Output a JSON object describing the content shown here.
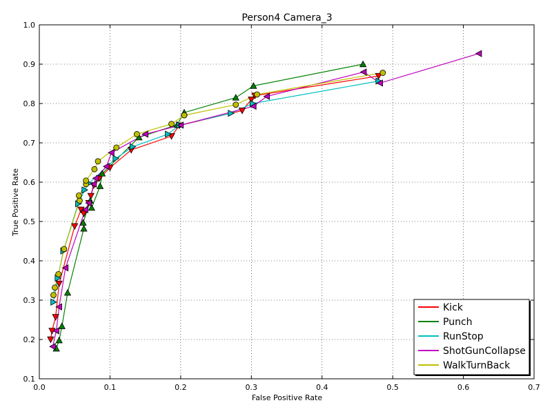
{
  "chart_data": {
    "type": "line",
    "title": "Person4 Camera_3",
    "xlabel": "False Positive Rate",
    "ylabel": "True Positive Rate",
    "xlim": [
      0.0,
      0.7
    ],
    "ylim": [
      0.1,
      1.0
    ],
    "xticks": [
      0.0,
      0.1,
      0.2,
      0.3,
      0.4,
      0.5,
      0.6,
      0.7
    ],
    "yticks": [
      0.1,
      0.2,
      0.3,
      0.4,
      0.5,
      0.6,
      0.7,
      0.8,
      0.9,
      1.0
    ],
    "xtick_labels": [
      "0.0",
      "0.1",
      "0.2",
      "0.3",
      "0.4",
      "0.5",
      "0.6",
      "0.7"
    ],
    "ytick_labels": [
      "0.1",
      "0.2",
      "0.3",
      "0.4",
      "0.5",
      "0.6",
      "0.7",
      "0.8",
      "0.9",
      "1.0"
    ],
    "grid": true,
    "legend_position": "bottom-right",
    "series": [
      {
        "name": "Kick",
        "color": "#ff0000",
        "marker": "triangle-down",
        "points": [
          [
            0.016,
            0.2
          ],
          [
            0.018,
            0.222
          ],
          [
            0.023,
            0.257
          ],
          [
            0.028,
            0.342
          ],
          [
            0.05,
            0.488
          ],
          [
            0.059,
            0.53
          ],
          [
            0.063,
            0.52
          ],
          [
            0.07,
            0.547
          ],
          [
            0.073,
            0.565
          ],
          [
            0.077,
            0.592
          ],
          [
            0.085,
            0.61
          ],
          [
            0.1,
            0.637
          ],
          [
            0.13,
            0.682
          ],
          [
            0.187,
            0.717
          ],
          [
            0.198,
            0.744
          ],
          [
            0.287,
            0.782
          ],
          [
            0.3,
            0.81
          ],
          [
            0.305,
            0.82
          ],
          [
            0.48,
            0.87
          ]
        ]
      },
      {
        "name": "Punch",
        "color": "#008000",
        "marker": "triangle-up",
        "points": [
          [
            0.024,
            0.177
          ],
          [
            0.028,
            0.198
          ],
          [
            0.032,
            0.234
          ],
          [
            0.04,
            0.319
          ],
          [
            0.063,
            0.482
          ],
          [
            0.062,
            0.497
          ],
          [
            0.072,
            0.553
          ],
          [
            0.074,
            0.535
          ],
          [
            0.086,
            0.59
          ],
          [
            0.089,
            0.622
          ],
          [
            0.141,
            0.714
          ],
          [
            0.195,
            0.746
          ],
          [
            0.205,
            0.777
          ],
          [
            0.278,
            0.815
          ],
          [
            0.303,
            0.845
          ],
          [
            0.458,
            0.9
          ]
        ]
      },
      {
        "name": "RunStop",
        "color": "#00bfbf",
        "marker": "triangle-right",
        "points": [
          [
            0.02,
            0.295
          ],
          [
            0.026,
            0.356
          ],
          [
            0.034,
            0.425
          ],
          [
            0.055,
            0.545
          ],
          [
            0.064,
            0.58
          ],
          [
            0.07,
            0.597
          ],
          [
            0.108,
            0.66
          ],
          [
            0.132,
            0.69
          ],
          [
            0.182,
            0.722
          ],
          [
            0.198,
            0.745
          ],
          [
            0.271,
            0.775
          ],
          [
            0.302,
            0.8
          ],
          [
            0.48,
            0.857
          ]
        ]
      },
      {
        "name": "ShotGunCollapse",
        "color": "#bf00bf",
        "marker": "triangle-left",
        "points": [
          [
            0.019,
            0.182
          ],
          [
            0.024,
            0.222
          ],
          [
            0.028,
            0.283
          ],
          [
            0.037,
            0.382
          ],
          [
            0.065,
            0.53
          ],
          [
            0.07,
            0.547
          ],
          [
            0.077,
            0.595
          ],
          [
            0.08,
            0.61
          ],
          [
            0.095,
            0.64
          ],
          [
            0.102,
            0.675
          ],
          [
            0.15,
            0.722
          ],
          [
            0.2,
            0.745
          ],
          [
            0.303,
            0.793
          ],
          [
            0.322,
            0.818
          ],
          [
            0.459,
            0.88
          ],
          [
            0.482,
            0.852
          ],
          [
            0.622,
            0.927
          ]
        ]
      },
      {
        "name": "WalkTurnBack",
        "color": "#bfbf00",
        "marker": "circle",
        "points": [
          [
            0.02,
            0.313
          ],
          [
            0.022,
            0.332
          ],
          [
            0.027,
            0.366
          ],
          [
            0.035,
            0.43
          ],
          [
            0.057,
            0.553
          ],
          [
            0.056,
            0.566
          ],
          [
            0.066,
            0.595
          ],
          [
            0.066,
            0.604
          ],
          [
            0.078,
            0.633
          ],
          [
            0.083,
            0.653
          ],
          [
            0.109,
            0.688
          ],
          [
            0.138,
            0.722
          ],
          [
            0.187,
            0.748
          ],
          [
            0.205,
            0.77
          ],
          [
            0.278,
            0.797
          ],
          [
            0.308,
            0.823
          ],
          [
            0.486,
            0.878
          ]
        ]
      }
    ]
  }
}
